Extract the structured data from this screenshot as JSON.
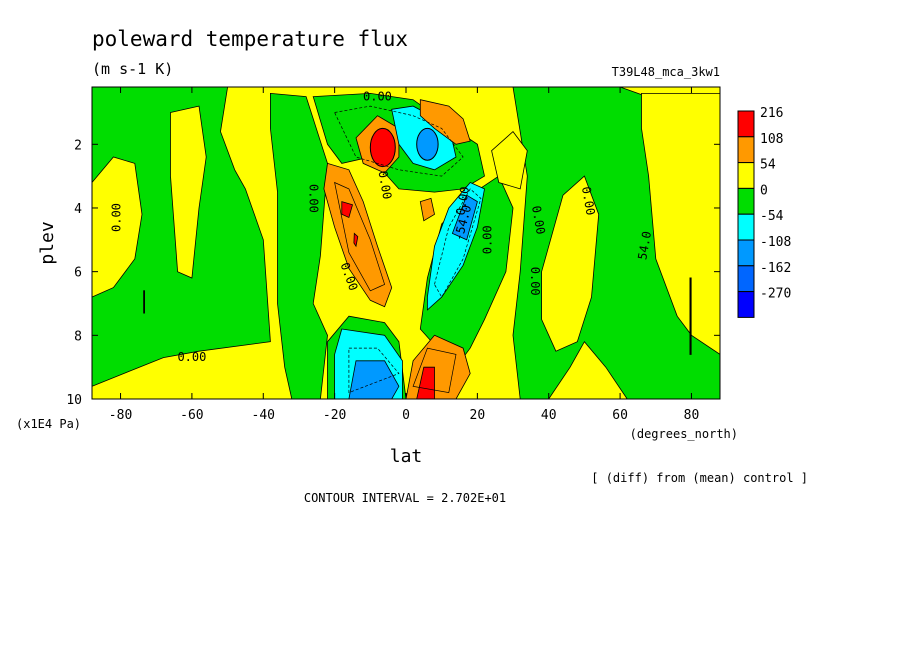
{
  "chart_data": {
    "type": "heatmap",
    "title": "poleward temperature flux",
    "subtitle": "(m s-1 K)",
    "run_label": "T39L48_mca_3kw1",
    "xlabel": "lat",
    "xunit": "(degrees_north)",
    "ylabel": "plev",
    "yunit": "(x1E4 Pa)",
    "xlim": [
      -88,
      88
    ],
    "ylim": [
      10,
      0.2
    ],
    "xticks": [
      "-80",
      "-60",
      "-40",
      "-20",
      "0",
      "20",
      "40",
      "60",
      "80"
    ],
    "yticks": [
      "2",
      "4",
      "6",
      "8",
      "10"
    ],
    "footer_note": "[ (diff) from (mean) control ]",
    "contour_interval_text": "CONTOUR INTERVAL = 2.702E+01",
    "colorbar": {
      "labels": [
        "216",
        "108",
        "54",
        "0",
        "-54",
        "-108",
        "-162",
        "-270"
      ],
      "colors": [
        "#ff0000",
        "#ff9900",
        "#ffff00",
        "#00dd00",
        "#00ffff",
        "#0099ff",
        "#0066ff",
        "#0000ff"
      ]
    },
    "contour_labels": [
      "0.00",
      "0.00",
      "0.00",
      "0.00",
      "0.00",
      "0.00",
      "0.00",
      "0.00",
      "0.00",
      "0.00",
      "0.00",
      "54.0",
      "-54.0"
    ],
    "features": [
      {
        "lat": -6,
        "plev": 2.1,
        "value": 216
      },
      {
        "lat": 6,
        "plev": 2.0,
        "value": -108
      },
      {
        "lat": 6,
        "plev": 1.0,
        "value": 54
      },
      {
        "lat": -18,
        "plev": 4.2,
        "value": 108
      },
      {
        "lat": 15,
        "plev": 4.8,
        "value": -108
      },
      {
        "lat": -12,
        "plev": 9.2,
        "value": -108
      },
      {
        "lat": 8,
        "plev": 9.2,
        "value": 108
      }
    ]
  }
}
